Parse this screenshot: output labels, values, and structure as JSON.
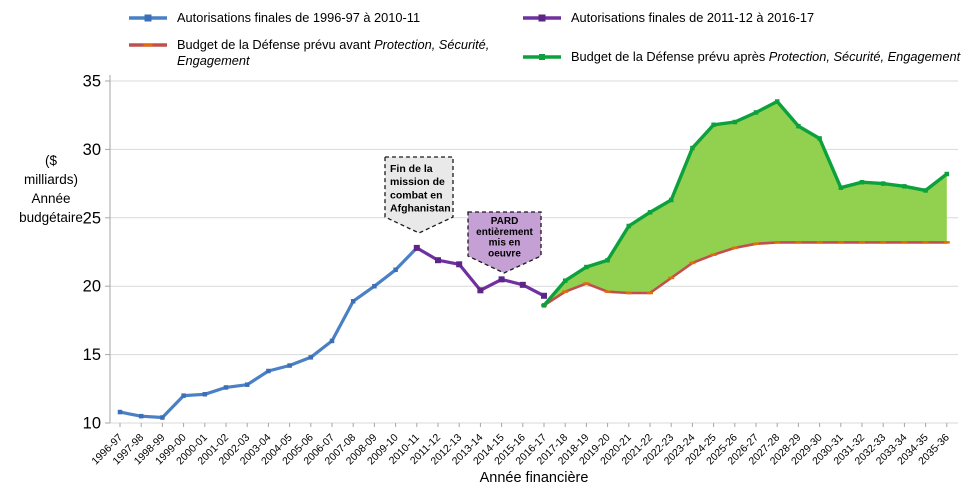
{
  "chart_data": {
    "type": "line",
    "title": "",
    "xlabel": "Année financière",
    "ylabel": "($\nmilliards)\nAnnée\nbudgétaire",
    "ylim": [
      10,
      35
    ],
    "yticks": [
      10,
      15,
      20,
      25,
      30,
      35
    ],
    "grid": "horizontal",
    "legend_position": "top",
    "categories": [
      "1996-97",
      "1997-98",
      "1998-99",
      "1999-00",
      "2000-01",
      "2001-02",
      "2002-03",
      "2003-04",
      "2004-05",
      "2005-06",
      "2006-07",
      "2007-08",
      "2008-09",
      "2009-10",
      "2010-11",
      "2011-12",
      "2012-13",
      "2013-14",
      "2014-15",
      "2015-16",
      "2016-17",
      "2017-18",
      "2018-19",
      "2019-20",
      "2020-21",
      "2021-22",
      "2022-23",
      "2023-24",
      "2024-25",
      "2025-26",
      "2026-27",
      "2027-28",
      "2028-29",
      "2029-30",
      "2030-31",
      "2031-32",
      "2032-33",
      "2033-34",
      "2034-35",
      "2035-36"
    ],
    "series": [
      {
        "name": "Autorisations finales de 1996-97 à 2010-11",
        "label_prefix": "Autorisations finales de 1996-97 à 2010-11",
        "label_italic": "",
        "color": "#4a80c4",
        "marker_color": "#3d6fb8",
        "marker": "square",
        "values": [
          10.8,
          10.5,
          10.4,
          12.0,
          12.1,
          12.6,
          12.8,
          13.8,
          14.2,
          14.8,
          16.0,
          18.9,
          20.0,
          21.2,
          22.8,
          null,
          null,
          null,
          null,
          null,
          null,
          null,
          null,
          null,
          null,
          null,
          null,
          null,
          null,
          null,
          null,
          null,
          null,
          null,
          null,
          null,
          null,
          null,
          null,
          null
        ]
      },
      {
        "name": "Autorisations finales de 2011-12 à 2016-17",
        "label_prefix": "Autorisations finales de 2011-12 à 2016-17",
        "label_italic": "",
        "color": "#7030a0",
        "marker_color": "#5c2586",
        "marker": "square",
        "values": [
          null,
          null,
          null,
          null,
          null,
          null,
          null,
          null,
          null,
          null,
          null,
          null,
          null,
          null,
          22.8,
          21.9,
          21.6,
          19.7,
          20.5,
          20.1,
          19.3,
          null,
          null,
          null,
          null,
          null,
          null,
          null,
          null,
          null,
          null,
          null,
          null,
          null,
          null,
          null,
          null,
          null,
          null,
          null
        ]
      },
      {
        "name": "Budget de la Défense prévu avant Protection, Sécurité, Engagement",
        "label_prefix": "Budget de la Défense prévu avant ",
        "label_italic": "Protection, Sécurité, Engagement",
        "color": "#c0504d",
        "marker_color": "#e36c09",
        "marker": "dash",
        "values": [
          null,
          null,
          null,
          null,
          null,
          null,
          null,
          null,
          null,
          null,
          null,
          null,
          null,
          null,
          null,
          null,
          null,
          null,
          null,
          null,
          18.6,
          19.6,
          20.2,
          19.6,
          19.5,
          19.5,
          20.6,
          21.7,
          22.3,
          22.8,
          23.1,
          23.2,
          23.2,
          23.2,
          23.2,
          23.2,
          23.2,
          23.2,
          23.2,
          23.2
        ]
      },
      {
        "name": "Budget de la Défense prévu après Protection, Sécurité, Engagement",
        "label_prefix": "Budget de la Défense prévu après ",
        "label_italic": "Protection, Sécurité, Engagement",
        "color": "#0ca13c",
        "marker_color": "#0ca13c",
        "marker": "square",
        "fill_to_series": 2,
        "fill_color": "#92d050",
        "values": [
          null,
          null,
          null,
          null,
          null,
          null,
          null,
          null,
          null,
          null,
          null,
          null,
          null,
          null,
          null,
          null,
          null,
          null,
          null,
          null,
          18.6,
          20.4,
          21.4,
          21.9,
          24.4,
          25.4,
          26.3,
          30.1,
          31.8,
          32.0,
          32.7,
          33.5,
          31.7,
          30.8,
          27.2,
          27.6,
          27.5,
          27.3,
          27.0,
          28.2
        ]
      }
    ],
    "annotations": [
      {
        "id": "afghanistan",
        "lines": [
          "Fin de la",
          "mission de",
          "combat en",
          "Afghanistan"
        ],
        "fill": "#e9e9e9",
        "border": "dashed"
      },
      {
        "id": "pard",
        "lines": [
          "PARD",
          "entièrement",
          "mis en",
          "oeuvre"
        ],
        "fill": "#c5a0d5",
        "border": "dashed"
      }
    ]
  }
}
